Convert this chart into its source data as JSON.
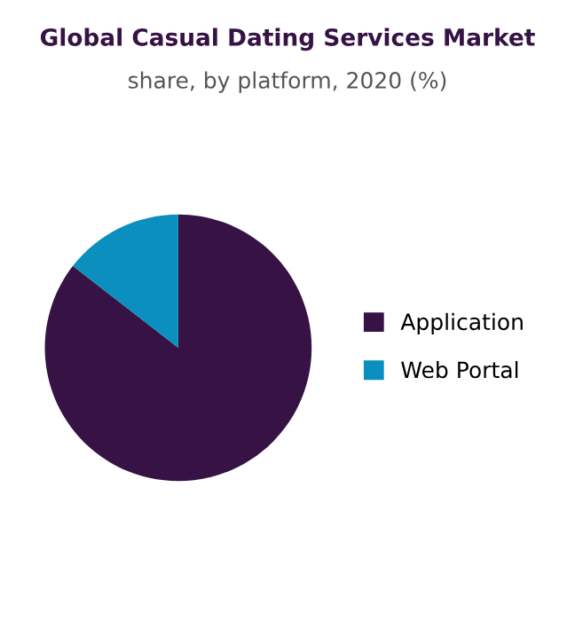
{
  "chart_data": {
    "type": "pie",
    "title": "Global Casual Dating Services Market",
    "subtitle": "share, by platform, 2020 (%)",
    "categories": [
      "Application",
      "Web Portal"
    ],
    "values": [
      85.5,
      14.5
    ],
    "colors": [
      "#361245",
      "#0a8fbf"
    ],
    "legend": "right"
  }
}
